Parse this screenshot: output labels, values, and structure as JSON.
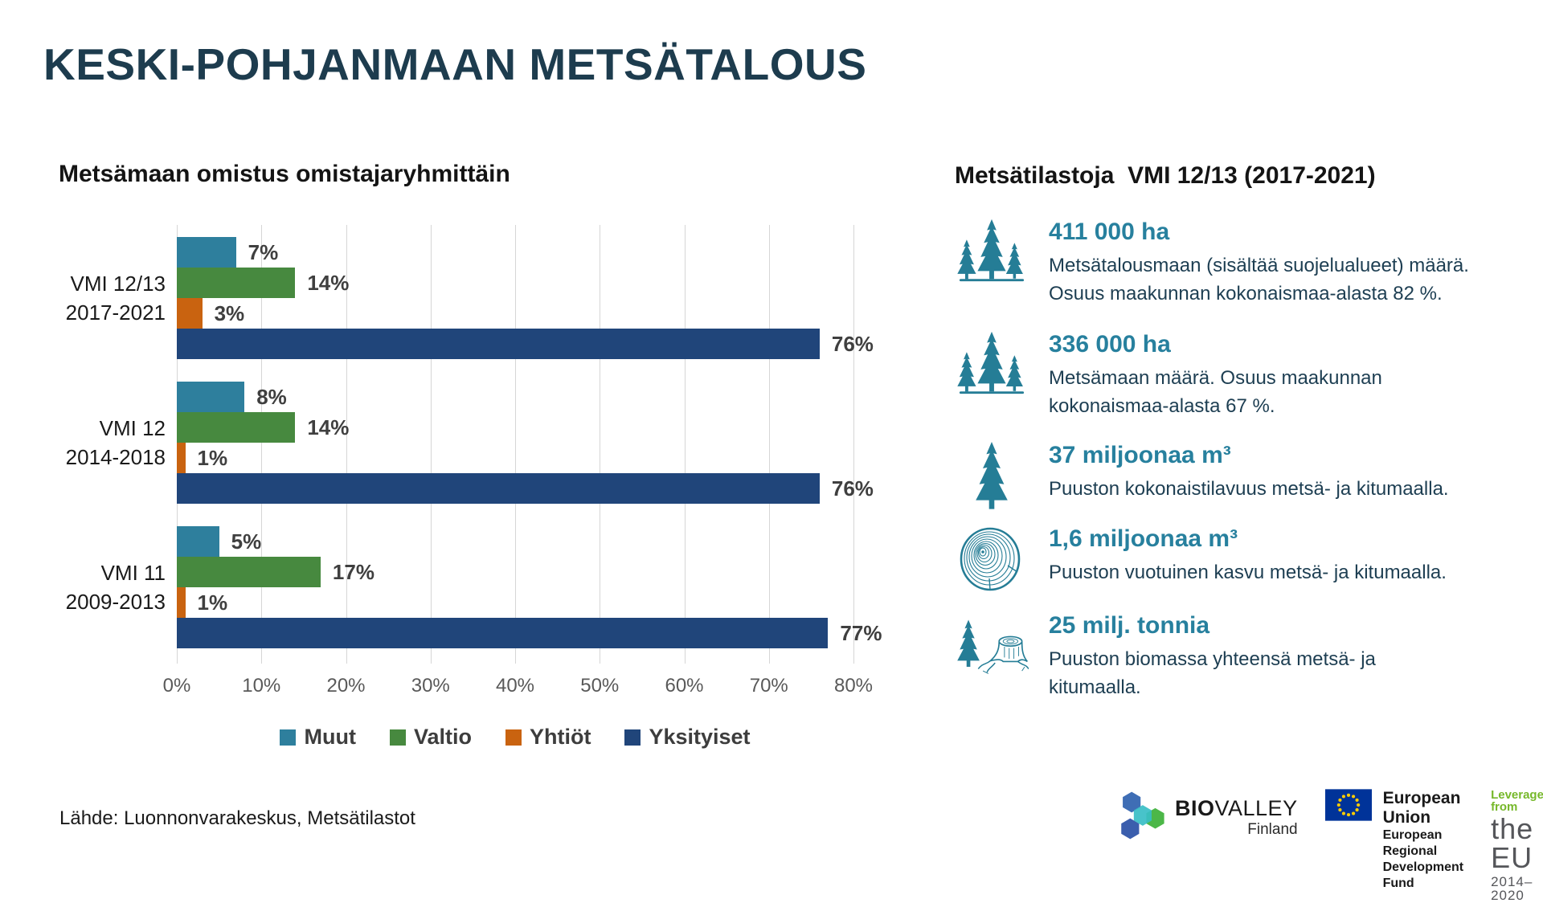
{
  "page": {
    "title": "KESKI-POHJANMAAN METSÄTALOUS"
  },
  "chart_data": {
    "type": "bar",
    "orientation": "horizontal",
    "title": "Metsämaan omistus omistajaryhmittäin",
    "categories": [
      "VMI 12/13\n2017-2021",
      "VMI 12\n2014-2018",
      "VMI 11\n2009-2013"
    ],
    "series": [
      {
        "name": "Muut",
        "color": "#2e7f9d",
        "values": [
          7,
          8,
          5
        ]
      },
      {
        "name": "Valtio",
        "color": "#47893f",
        "values": [
          14,
          14,
          17
        ]
      },
      {
        "name": "Yhtiöt",
        "color": "#c96310",
        "values": [
          3,
          1,
          1
        ]
      },
      {
        "name": "Yksityiset",
        "color": "#20457a",
        "values": [
          76,
          76,
          77
        ]
      }
    ],
    "value_label_format": "{v}%",
    "xlim": [
      0,
      80
    ],
    "x_tick_labels": [
      "0%",
      "10%",
      "20%",
      "30%",
      "40%",
      "50%",
      "60%",
      "70%",
      "80%"
    ],
    "grid": true,
    "legend_position": "bottom"
  },
  "stats": {
    "heading": "Metsätilastoja  VMI 12/13 (2017-2021)",
    "items": [
      {
        "icon": "forest-trees-icon",
        "value": "411 000 ha",
        "desc": "Metsätalousmaan  (sisältää suojelualueet) määrä.\nOsuus maakunnan kokonaismaa-alasta 82 %."
      },
      {
        "icon": "forest-trees-icon",
        "value": "336 000 ha",
        "desc": "Metsämaan määrä. Osuus maakunnan\nkokonaismaa-alasta 67 %."
      },
      {
        "icon": "spruce-tree-icon",
        "value": "37 miljoonaa m³",
        "desc": "Puuston kokonaistilavuus metsä- ja kitumaalla."
      },
      {
        "icon": "tree-rings-icon",
        "value": "1,6 miljoonaa m³",
        "desc": "Puuston vuotuinen kasvu metsä- ja kitumaalla."
      },
      {
        "icon": "tree-stump-icon",
        "value": "25 milj. tonnia",
        "desc": "Puuston biomassa yhteensä metsä- ja\nkitumaalla."
      }
    ]
  },
  "footer": {
    "source": "Lähde: Luonnonvarakeskus, Metsätilastot",
    "biovalley": {
      "bold": "BIO",
      "rest": "VALLEY",
      "country": "Finland"
    },
    "eu": {
      "title": "European Union",
      "subtitle1": "European Regional",
      "subtitle2": "Development Fund"
    },
    "leverage": {
      "top": "Leverage from",
      "mid": "the EU",
      "bottom": "2014–2020"
    }
  },
  "colors": {
    "title": "#1d3c4e",
    "muut": "#2e7f9d",
    "valtio": "#47893f",
    "yhtiot": "#c96310",
    "yksityiset": "#20457a",
    "stat_accent": "#27809e",
    "icon_teal": "#257d96",
    "grid": "#d6d6d6"
  }
}
